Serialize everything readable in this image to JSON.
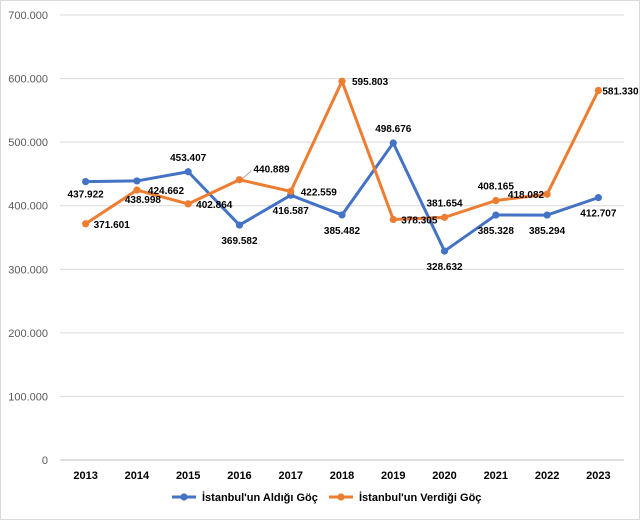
{
  "chart_data": {
    "type": "line",
    "title": "",
    "xlabel": "",
    "ylabel": "",
    "ylim": [
      0,
      700000
    ],
    "yticks": [
      0,
      100000,
      200000,
      300000,
      400000,
      500000,
      600000,
      700000
    ],
    "ytick_labels": [
      "0",
      "100.000",
      "200.000",
      "300.000",
      "400.000",
      "500.000",
      "600.000",
      "700.000"
    ],
    "categories": [
      "2013",
      "2014",
      "2015",
      "2016",
      "2017",
      "2018",
      "2019",
      "2020",
      "2021",
      "2022",
      "2023"
    ],
    "grid": "horizontal",
    "legend_position": "bottom",
    "series": [
      {
        "name": "İstanbul'un Aldığı Göç",
        "color": "#4472c4",
        "values": [
          437922,
          438998,
          453407,
          369582,
          416587,
          385482,
          498676,
          328632,
          385328,
          385294,
          412707
        ],
        "labels": [
          "437.922",
          "438.998",
          "453.407",
          "369.582",
          "416.587",
          "385.482",
          "498.676",
          "328.632",
          "385.328",
          "385.294",
          "412.707"
        ]
      },
      {
        "name": "İstanbul'un Verdiği Göç",
        "color": "#ed7d31",
        "values": [
          371601,
          424662,
          402864,
          440889,
          422559,
          595803,
          378305,
          381654,
          408165,
          418082,
          581330
        ],
        "labels": [
          "371.601",
          "424.662",
          "402.864",
          "440.889",
          "422.559",
          "595.803",
          "378.305",
          "381.654",
          "408.165",
          "418.082",
          "581.330"
        ]
      }
    ]
  }
}
